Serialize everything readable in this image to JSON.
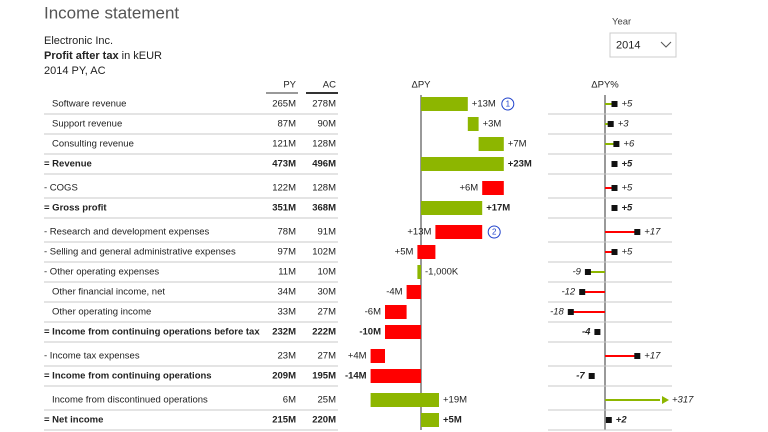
{
  "header": {
    "title": "Income statement",
    "year_label": "Year",
    "year_value": "2014",
    "company": "Electronic Inc.",
    "measure": "Profit after tax",
    "unit": " in kEUR",
    "scenario": "2014 PY, AC"
  },
  "columns": {
    "py": "PY",
    "ac": "AC",
    "delta": "ΔPY",
    "delta_pct": "ΔPY%"
  },
  "groups": [
    {
      "rows": [
        {
          "label": "Software revenue",
          "py": "265M",
          "ac": "278M",
          "delta": 13,
          "delta_label": "+13M",
          "pct": 5,
          "pct_label": "+5",
          "annotation": "1"
        },
        {
          "label": "Support revenue",
          "py": "87M",
          "ac": "90M",
          "delta": 3,
          "delta_label": "+3M",
          "pct": 3,
          "pct_label": "+3"
        },
        {
          "label": "Consulting revenue",
          "py": "121M",
          "ac": "128M",
          "delta": 7,
          "delta_label": "+7M",
          "pct": 6,
          "pct_label": "+6"
        },
        {
          "label": "= Revenue",
          "py": "473M",
          "ac": "496M",
          "delta": 23,
          "delta_label": "+23M",
          "pct": 5,
          "pct_label": "+5"
        }
      ]
    },
    {
      "rows": [
        {
          "label": "- COGS",
          "py": "122M",
          "ac": "128M",
          "delta": 6,
          "delta_label": "+6M",
          "pct": 5,
          "pct_label": "+5"
        },
        {
          "label": "= Gross profit",
          "py": "351M",
          "ac": "368M",
          "delta": 17,
          "delta_label": "+17M",
          "pct": 5,
          "pct_label": "+5"
        }
      ]
    },
    {
      "rows": [
        {
          "label": "- Research and development expenses",
          "py": "78M",
          "ac": "91M",
          "delta": 13,
          "delta_label": "+13M",
          "pct": 17,
          "pct_label": "+17",
          "annotation": "2"
        },
        {
          "label": "- Selling and general administrative expenses",
          "py": "97M",
          "ac": "102M",
          "delta": 5,
          "delta_label": "+5M",
          "pct": 5,
          "pct_label": "+5"
        },
        {
          "label": "- Other operating expenses",
          "py": "11M",
          "ac": "10M",
          "delta": -1,
          "delta_label": "-1,000K",
          "pct": -9,
          "pct_label": "-9"
        },
        {
          "label": "Other financial income, net",
          "py": "34M",
          "ac": "30M",
          "delta": -4,
          "delta_label": "-4M",
          "pct": -12,
          "pct_label": "-12"
        },
        {
          "label": "Other operating income",
          "py": "33M",
          "ac": "27M",
          "delta": -6,
          "delta_label": "-6M",
          "pct": -18,
          "pct_label": "-18"
        },
        {
          "label": "= Income from continuing operations before tax",
          "py": "232M",
          "ac": "222M",
          "delta": -10,
          "delta_label": "-10M",
          "pct": -4,
          "pct_label": "-4"
        }
      ]
    },
    {
      "rows": [
        {
          "label": "- Income tax expenses",
          "py": "23M",
          "ac": "27M",
          "delta": 4,
          "delta_label": "+4M",
          "pct": 17,
          "pct_label": "+17"
        },
        {
          "label": "= Income from continuing operations",
          "py": "209M",
          "ac": "195M",
          "delta": -14,
          "delta_label": "-14M",
          "pct": -7,
          "pct_label": "-7"
        }
      ]
    },
    {
      "rows": [
        {
          "label": "Income from discontinued operations",
          "py": "6M",
          "ac": "25M",
          "delta": 19,
          "delta_label": "+19M",
          "pct": 317,
          "pct_label": "+317"
        },
        {
          "label": "= Net income",
          "py": "215M",
          "ac": "220M",
          "delta": 5,
          "delta_label": "+5M",
          "pct": 2,
          "pct_label": "+2"
        }
      ]
    }
  ]
}
